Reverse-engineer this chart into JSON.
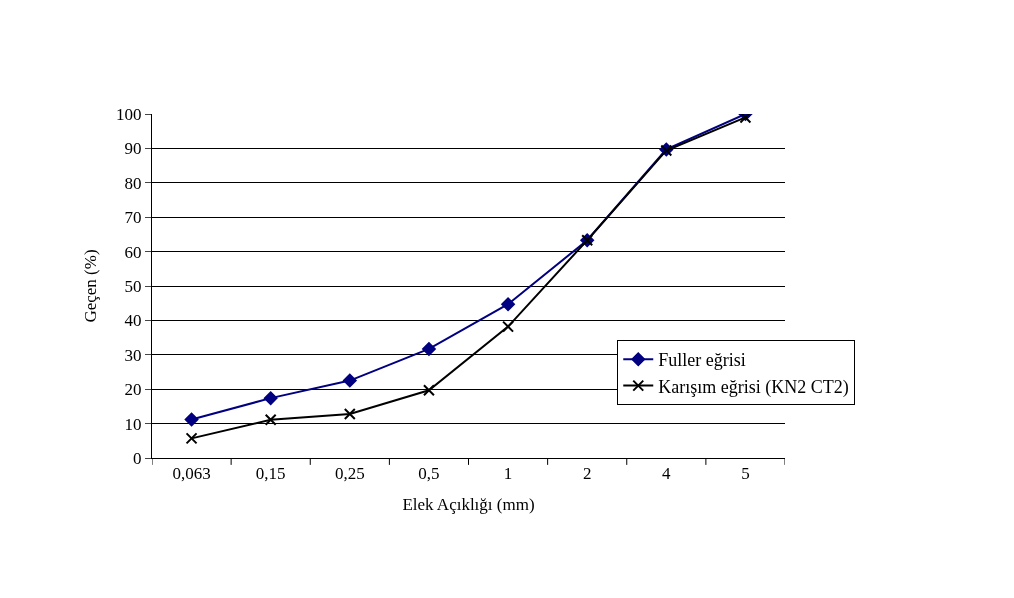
{
  "chart_data": {
    "type": "line",
    "xlabel": "Elek Açıklığı (mm)",
    "ylabel": "Geçen (%)",
    "categories": [
      "0,063",
      "0,15",
      "0,25",
      "0,5",
      "1",
      "2",
      "4",
      "5"
    ],
    "series": [
      {
        "name": "Fuller eğrisi",
        "color": "#000080",
        "marker": "diamond",
        "values": [
          11.2,
          17.4,
          22.5,
          31.7,
          44.7,
          63.3,
          89.7,
          100
        ]
      },
      {
        "name": "Karışım eğrisi (KN2 CT2)",
        "color": "#000000",
        "marker": "cross",
        "values": [
          5.7,
          11.1,
          12.8,
          19.7,
          38.2,
          63.3,
          89.4,
          99
        ]
      }
    ],
    "ylim": [
      0,
      100
    ],
    "yticks": [
      0,
      10,
      20,
      30,
      40,
      50,
      60,
      70,
      80,
      90,
      100
    ],
    "grid": "y",
    "legend": "right"
  }
}
